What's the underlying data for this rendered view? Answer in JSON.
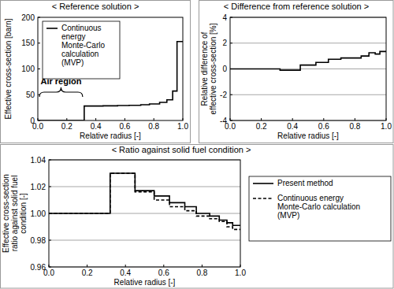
{
  "chart_data": [
    {
      "type": "line",
      "title": "< Reference solution >",
      "x_label": "Relative radius [-]",
      "y_label": "Effective cross-section [barn]",
      "x": [
        0,
        0.32,
        0.32,
        0.45,
        0.45,
        0.55,
        0.55,
        0.63,
        0.63,
        0.71,
        0.71,
        0.77,
        0.77,
        0.84,
        0.84,
        0.89,
        0.89,
        0.93,
        0.93,
        0.96,
        0.96,
        1.0
      ],
      "series": [
        {
          "name": "Continuous energy Monte-Carlo calculation (MVP)",
          "color": "#000000",
          "line_style": "solid",
          "values": [
            0,
            0,
            28,
            28,
            28.5,
            28.5,
            29,
            29,
            29.5,
            29.5,
            30.5,
            30.5,
            32,
            32,
            35,
            35,
            40,
            40,
            57,
            57,
            153,
            153
          ]
        }
      ],
      "xlim": [
        0,
        1
      ],
      "xticks": [
        {
          "value": 0,
          "label": "0.0"
        },
        {
          "value": 0.2,
          "label": "0.2"
        },
        {
          "value": 0.4,
          "label": "0.4"
        },
        {
          "value": 0.6,
          "label": "0.6"
        },
        {
          "value": 0.8,
          "label": "0.8"
        },
        {
          "value": 1,
          "label": "1.0"
        }
      ],
      "ylim": [
        0,
        200
      ],
      "yticks": [
        0,
        50,
        100,
        150,
        200
      ],
      "grid": false,
      "legend": "upper left",
      "annotations": [
        "Air region"
      ]
    },
    {
      "type": "line",
      "title": "< Difference from reference solution >",
      "x_label": "Relative radius [-]",
      "y_label": "Relative difference of effective cross-section [%]",
      "x": [
        0,
        0.32,
        0.32,
        0.45,
        0.45,
        0.55,
        0.55,
        0.63,
        0.63,
        0.71,
        0.71,
        0.77,
        0.77,
        0.84,
        0.84,
        0.89,
        0.89,
        0.93,
        0.93,
        0.96,
        0.96,
        1.0
      ],
      "series": [
        {
          "color": "#000000",
          "line_style": "solid",
          "values": [
            0,
            0,
            -0.1,
            -0.1,
            0.3,
            0.3,
            0.5,
            0.5,
            0.75,
            0.75,
            0.85,
            0.85,
            0.85,
            0.85,
            1.0,
            1.0,
            1.25,
            1.25,
            1.15,
            1.15,
            1.35,
            1.35
          ]
        }
      ],
      "xlim": [
        0,
        1
      ],
      "xticks": [
        {
          "value": 0,
          "label": "0.0"
        },
        {
          "value": 0.2,
          "label": "0.2"
        },
        {
          "value": 0.4,
          "label": "0.4"
        },
        {
          "value": 0.6,
          "label": "0.6"
        },
        {
          "value": 0.8,
          "label": "0.8"
        },
        {
          "value": 1,
          "label": "1.0"
        }
      ],
      "ylim": [
        -4,
        4
      ],
      "yticks": [
        -4,
        -2,
        0,
        2,
        4
      ],
      "grid": true
    },
    {
      "type": "line",
      "title": "< Ratio against solid fuel condition >",
      "x_label": "Relative radius [-]",
      "y_label": "Effective cross-section ratio against solid fuel condition [-]",
      "x": [
        0,
        0.32,
        0.32,
        0.45,
        0.45,
        0.55,
        0.55,
        0.63,
        0.63,
        0.71,
        0.71,
        0.77,
        0.77,
        0.84,
        0.84,
        0.89,
        0.89,
        0.93,
        0.93,
        0.96,
        0.96,
        1.0
      ],
      "series": [
        {
          "name": "Present method",
          "color": "#000000",
          "line_style": "solid",
          "values": [
            1.0,
            1.0,
            1.03,
            1.03,
            1.017,
            1.017,
            1.013,
            1.013,
            1.008,
            1.008,
            1.005,
            1.005,
            1.0,
            1.0,
            0.998,
            0.998,
            0.995,
            0.995,
            0.993,
            0.993,
            0.991,
            0.991
          ]
        },
        {
          "name": "Continuous energy Monte-Carlo calculation (MVP)",
          "color": "#000000",
          "line_style": "dashed",
          "values": [
            1.0,
            1.0,
            1.03,
            1.03,
            1.016,
            1.016,
            1.01,
            1.01,
            1.005,
            1.005,
            1.002,
            1.002,
            0.998,
            0.998,
            0.996,
            0.996,
            0.994,
            0.994,
            0.99,
            0.99,
            0.988,
            0.988
          ]
        }
      ],
      "xlim": [
        0,
        1
      ],
      "xticks": [
        {
          "value": 0,
          "label": "0.0"
        },
        {
          "value": 0.2,
          "label": "0.2"
        },
        {
          "value": 0.4,
          "label": "0.4"
        },
        {
          "value": 0.6,
          "label": "0.6"
        },
        {
          "value": 0.8,
          "label": "0.8"
        },
        {
          "value": 1,
          "label": "1.0"
        }
      ],
      "ylim": [
        0.96,
        1.04
      ],
      "yticks": [
        {
          "value": 0.96,
          "label": "0.96"
        },
        {
          "value": 0.98,
          "label": "0.98"
        },
        {
          "value": 1.0,
          "label": "1.00"
        },
        {
          "value": 1.02,
          "label": "1.02"
        },
        {
          "value": 1.04,
          "label": "1.04"
        }
      ],
      "grid": true,
      "legend": "right"
    }
  ]
}
